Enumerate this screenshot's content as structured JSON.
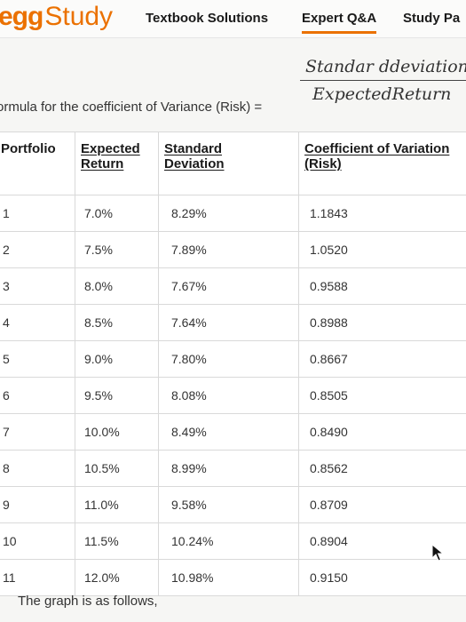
{
  "header": {
    "brand_egg": "egg",
    "brand_study": "Study",
    "nav": {
      "textbook_solutions": "Textbook Solutions",
      "expert_qa": "Expert Q&A",
      "study_pack": "Study Pa"
    },
    "accent_color": "#eb7100"
  },
  "formula": {
    "label": "ormula for the coefficient of Variance (Risk) =",
    "numerator": "Standar ddeviation",
    "denominator": "ExpectedReturn"
  },
  "table": {
    "headers": {
      "portfolio": "Portfolio",
      "expected_1": "Expected",
      "expected_2": "Return",
      "std_1": "Standard",
      "std_2": "Deviation",
      "cv_1": "Coefficient of Variation",
      "cv_2": "(Risk)"
    },
    "rows": [
      {
        "portfolio": "1",
        "expected_return": "7.0%",
        "std_dev": "8.29%",
        "cv": "1.1843"
      },
      {
        "portfolio": "2",
        "expected_return": "7.5%",
        "std_dev": "7.89%",
        "cv": "1.0520"
      },
      {
        "portfolio": "3",
        "expected_return": "8.0%",
        "std_dev": "7.67%",
        "cv": "0.9588"
      },
      {
        "portfolio": "4",
        "expected_return": "8.5%",
        "std_dev": "7.64%",
        "cv": "0.8988"
      },
      {
        "portfolio": "5",
        "expected_return": "9.0%",
        "std_dev": "7.80%",
        "cv": "0.8667"
      },
      {
        "portfolio": "6",
        "expected_return": "9.5%",
        "std_dev": "8.08%",
        "cv": "0.8505"
      },
      {
        "portfolio": "7",
        "expected_return": "10.0%",
        "std_dev": "8.49%",
        "cv": "0.8490"
      },
      {
        "portfolio": "8",
        "expected_return": "10.5%",
        "std_dev": "8.99%",
        "cv": "0.8562"
      },
      {
        "portfolio": "9",
        "expected_return": "11.0%",
        "std_dev": "9.58%",
        "cv": "0.8709"
      },
      {
        "portfolio": "10",
        "expected_return": "11.5%",
        "std_dev": "10.24%",
        "cv": "0.8904"
      },
      {
        "portfolio": "11",
        "expected_return": "12.0%",
        "std_dev": "10.98%",
        "cv": "0.9150"
      }
    ]
  },
  "footer_text": "The graph is as follows,",
  "cursor": {
    "icon": "mouse-pointer-icon"
  }
}
